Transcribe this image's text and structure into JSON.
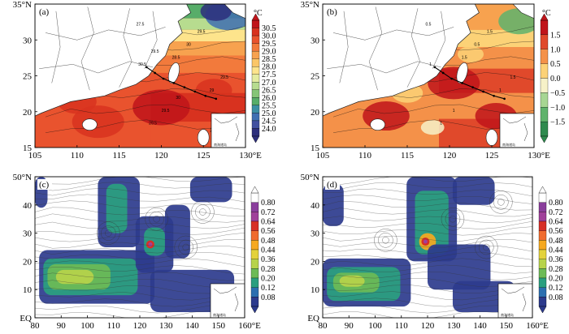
{
  "panels": [
    {
      "id": "a",
      "label": "(a)",
      "kind": "sst",
      "lon_ticks": [
        "105",
        "110",
        "115",
        "120",
        "125",
        "130°E"
      ],
      "lat_ticks": [
        "35°N",
        "30",
        "25",
        "20",
        "15"
      ],
      "inset_text": "南海诸岛",
      "contour_labels": [
        "27.5",
        "28.5",
        "29",
        "29.5",
        "30",
        "29.5",
        "29.5",
        "29.5",
        "30.5",
        "30",
        "29.5",
        "29.5"
      ],
      "colorbar": {
        "unit": "°C",
        "labels": [
          "30.5",
          "30.0",
          "29.5",
          "29.0",
          "28.5",
          "28.0",
          "27.5",
          "27.0",
          "26.5",
          "26.0",
          "25.5",
          "25.0",
          "24.5",
          "24.0"
        ],
        "colors": [
          "#c0141a",
          "#d8321f",
          "#e9532e",
          "#f27a3c",
          "#f7a24f",
          "#fbc667",
          "#fde48c",
          "#e4eca0",
          "#b7dc8f",
          "#85c577",
          "#57ad69",
          "#3c8fa3",
          "#3f6fb2",
          "#4150a0",
          "#2d2f7c"
        ]
      }
    },
    {
      "id": "b",
      "label": "(b)",
      "kind": "anomaly",
      "lon_ticks": [
        "105",
        "110",
        "115",
        "120",
        "125",
        "130°E"
      ],
      "lat_ticks": [
        "35°N",
        "30",
        "25",
        "20",
        "15"
      ],
      "inset_text": "南海诸岛",
      "contour_labels": [
        "0.5",
        "1.5",
        "1",
        "1",
        "0.5",
        "1.5",
        "1",
        "1.5",
        "1"
      ],
      "colorbar": {
        "unit": "°C",
        "labels": [
          "1.5",
          "1.0",
          "0.5",
          "0.0",
          "−0.5",
          "−1.0",
          "−1.5"
        ],
        "colors": [
          "#c0141a",
          "#e0492b",
          "#f49149",
          "#fcd277",
          "#f6f1c8",
          "#a7d693",
          "#5fb36c",
          "#2f8a4e"
        ]
      }
    },
    {
      "id": "c",
      "label": "(c)",
      "kind": "flow",
      "lon_ticks": [
        "80",
        "90",
        "100",
        "110",
        "120",
        "130",
        "140",
        "150",
        "160°E"
      ],
      "lat_ticks": [
        "50°N",
        "40",
        "30",
        "20",
        "10",
        "EQ"
      ],
      "inset_text": "南海诸岛",
      "colorbar": {
        "unit": "",
        "labels": [
          "0.80",
          "0.72",
          "0.64",
          "0.56",
          "0.48",
          "0.44",
          "0.36",
          "0.28",
          "0.20",
          "0.12",
          "0.08"
        ],
        "colors": [
          "#ffffff",
          "#8a3e9c",
          "#a0409a",
          "#d73027",
          "#f06b2e",
          "#f6a91f",
          "#e3d23b",
          "#b7d34a",
          "#6dbb56",
          "#2a9f7f",
          "#2c6fb0",
          "#2c3b8d"
        ]
      }
    },
    {
      "id": "d",
      "label": "(d)",
      "kind": "flow",
      "lon_ticks": [
        "80",
        "90",
        "100",
        "110",
        "120",
        "130",
        "140",
        "150",
        "160°E"
      ],
      "lat_ticks": [
        "50°N",
        "40",
        "30",
        "20",
        "10",
        "EQ"
      ],
      "inset_text": "南海诸岛",
      "colorbar": {
        "unit": "",
        "labels": [
          "0.80",
          "0.72",
          "0.64",
          "0.56",
          "0.48",
          "0.44",
          "0.36",
          "0.28",
          "0.20",
          "0.12",
          "0.08"
        ],
        "colors": [
          "#ffffff",
          "#8a3e9c",
          "#a0409a",
          "#d73027",
          "#f06b2e",
          "#f6a91f",
          "#e3d23b",
          "#b7d34a",
          "#6dbb56",
          "#2a9f7f",
          "#2c6fb0",
          "#2c3b8d"
        ]
      }
    }
  ]
}
